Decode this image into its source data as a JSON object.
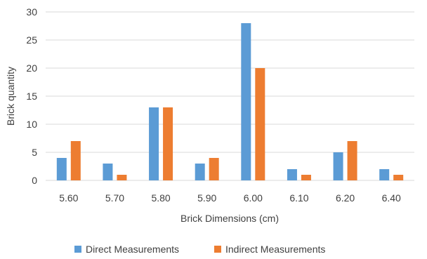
{
  "chart_data": {
    "type": "bar",
    "title": "",
    "xlabel": "Brick Dimensions   (cm)",
    "ylabel": "Brick quantity",
    "categories": [
      "5.60",
      "5.70",
      "5.80",
      "5.90",
      "6.00",
      "6.10",
      "6.20",
      "6.40"
    ],
    "series": [
      {
        "name": "Direct Measurements",
        "color": "#5B9BD5",
        "values": [
          4,
          3,
          13,
          3,
          28,
          2,
          5,
          2
        ]
      },
      {
        "name": "Indirect Measurements",
        "color": "#ED7D31",
        "values": [
          7,
          1,
          13,
          4,
          20,
          1,
          7,
          1
        ]
      }
    ],
    "ylim": [
      0,
      30
    ],
    "yticks": [
      0,
      5,
      10,
      15,
      20,
      25,
      30
    ],
    "grid": true,
    "legend_position": "bottom"
  }
}
